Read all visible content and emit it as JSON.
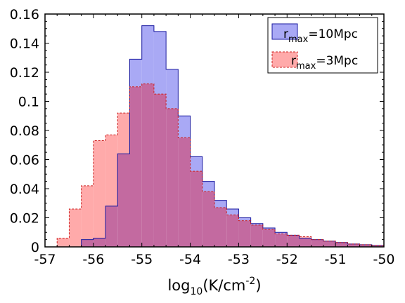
{
  "chart_data": {
    "type": "histogram",
    "xlabel": {
      "base": "log",
      "sub": "10",
      "main": "(K/cm",
      "sup": "-2",
      "tail": ")"
    },
    "ylabel": "",
    "xlim": [
      -57,
      -50
    ],
    "ylim": [
      0,
      0.16
    ],
    "xticks": [
      -57,
      -56,
      -55,
      -54,
      -53,
      -52,
      -51,
      -50
    ],
    "xtick_labels": [
      "-57",
      "-56",
      "-55",
      "-54",
      "-53",
      "-52",
      "-51",
      "-50"
    ],
    "yticks": [
      0,
      0.02,
      0.04,
      0.06,
      0.08,
      0.1,
      0.12,
      0.14,
      0.16
    ],
    "ytick_labels": [
      "0",
      "0.02",
      "0.04",
      "0.06",
      "0.08",
      "0.1",
      "0.12",
      "0.14",
      "0.16"
    ],
    "grid": false,
    "legend_position": "top-right",
    "bin_edges": [
      -56.75,
      -56.5,
      -56.25,
      -56.0,
      -55.75,
      -55.5,
      -55.25,
      -55.0,
      -54.75,
      -54.5,
      -54.25,
      -54.0,
      -53.75,
      -53.5,
      -53.25,
      -53.0,
      -52.75,
      -52.5,
      -52.25,
      -52.0,
      -51.75,
      -51.5,
      -51.25,
      -51.0,
      -50.75,
      -50.5,
      -50.25,
      -50.0
    ],
    "series": [
      {
        "name_main": "r",
        "name_sub": "max",
        "name_tail": "=10Mpc",
        "fill": "#a9a9f5",
        "stroke": "#1a1aa0",
        "dash": "",
        "values": [
          0.0,
          0.0,
          0.005,
          0.006,
          0.028,
          0.064,
          0.129,
          0.152,
          0.148,
          0.122,
          0.09,
          0.062,
          0.045,
          0.032,
          0.026,
          0.02,
          0.016,
          0.013,
          0.01,
          0.008,
          0.006,
          0.005,
          0.004,
          0.003,
          0.002,
          0.0015,
          0.001
        ]
      },
      {
        "name_main": "r",
        "name_sub": "max",
        "name_tail": "=3Mpc",
        "fill": "#ffaaaa",
        "stroke": "#cc2020",
        "dash": "3,2",
        "values": [
          0.006,
          0.026,
          0.042,
          0.073,
          0.077,
          0.092,
          0.11,
          0.112,
          0.105,
          0.095,
          0.075,
          0.052,
          0.038,
          0.027,
          0.022,
          0.018,
          0.015,
          0.012,
          0.009,
          0.008,
          0.007,
          0.005,
          0.004,
          0.003,
          0.002,
          0.0015,
          0.001
        ]
      }
    ],
    "overlap_color": "#c36aa0"
  }
}
